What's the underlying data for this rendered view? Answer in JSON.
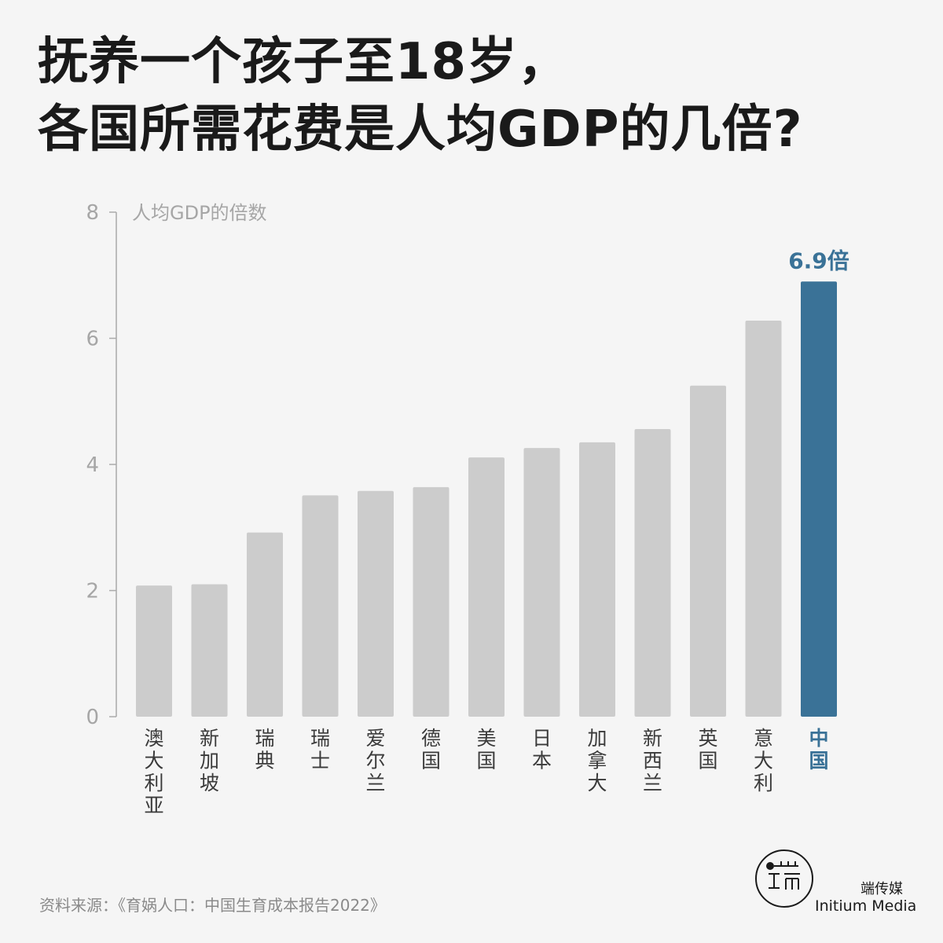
{
  "title": {
    "line1": "抚养一个孩子至18岁，",
    "line2": "各国所需花费是人均GDP的几倍?"
  },
  "chart_data": {
    "type": "bar",
    "ylabel": "人均GDP的倍数",
    "ylim": [
      0,
      8
    ],
    "yticks": [
      0,
      2,
      4,
      6,
      8
    ],
    "grid": false,
    "categories": [
      "澳大利亚",
      "新加坡",
      "瑞典",
      "瑞士",
      "爱尔兰",
      "德国",
      "美国",
      "日本",
      "加拿大",
      "新西兰",
      "英国",
      "意大利",
      "中国"
    ],
    "values": [
      2.08,
      2.1,
      2.92,
      3.51,
      3.58,
      3.64,
      4.11,
      4.26,
      4.35,
      4.56,
      5.25,
      6.28,
      6.9
    ],
    "highlight": {
      "category": "中国",
      "label": "6.9倍",
      "color": "#3a7297"
    },
    "bar_color": "#cccccc",
    "axis_color": "#aaaaaa"
  },
  "source": "资料来源：《育娲人口：中国生育成本报告2022》",
  "logo": {
    "cn": "端传媒",
    "en": "Initium Media"
  }
}
